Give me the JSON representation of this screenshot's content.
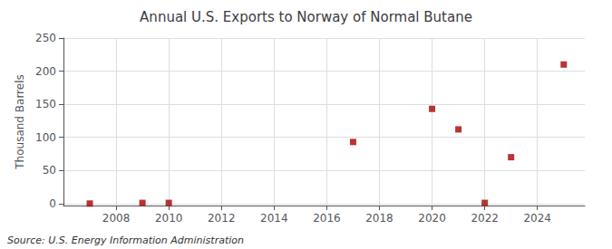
{
  "chart_data": {
    "type": "scatter",
    "title": "Annual U.S. Exports to Norway of Normal Butane",
    "ylabel": "Thousand Barrels",
    "annotations": [
      "Source: U.S. Energy Information Administration"
    ],
    "x": [
      2007,
      2009,
      2010,
      2017,
      2020,
      2021,
      2022,
      2023,
      2025
    ],
    "values": [
      0,
      1,
      1,
      93,
      143,
      112,
      1,
      70,
      210
    ],
    "color": "#aa0000",
    "marker": "square",
    "xlim": [
      2006.0,
      2025.8
    ],
    "xticks": [
      2008,
      2010,
      2012,
      2014,
      2016,
      2018,
      2020,
      2022,
      2024
    ],
    "ylim": [
      -3,
      250
    ],
    "yticks": [
      0,
      50,
      100,
      150,
      200,
      250
    ],
    "grid": true
  }
}
